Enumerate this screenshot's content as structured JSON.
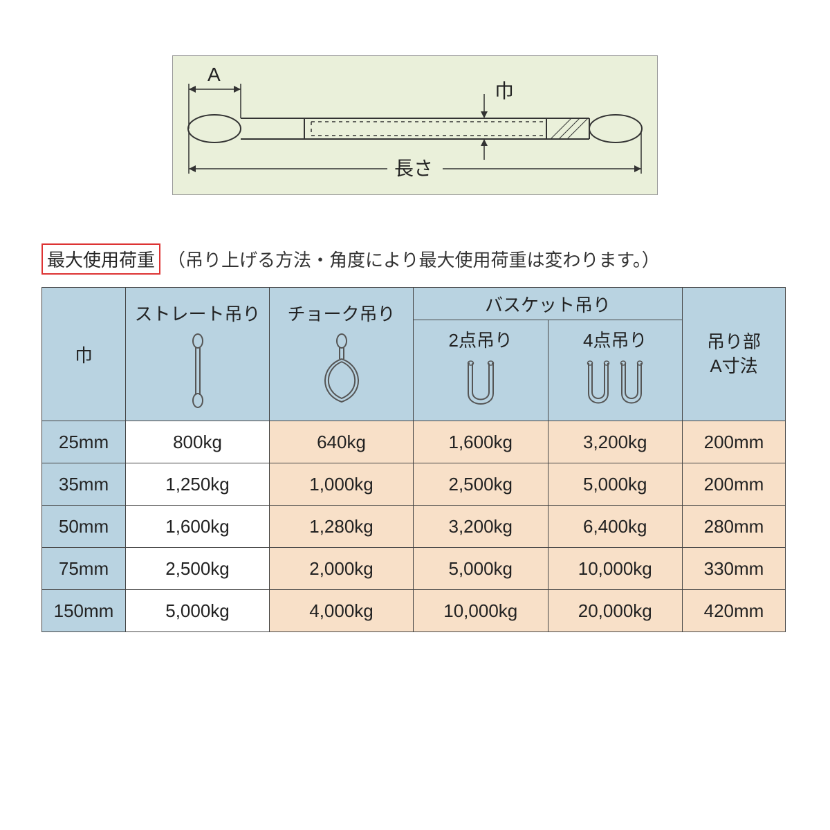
{
  "diagram": {
    "background": "#eaf0da",
    "label_A": "A",
    "label_width": "巾",
    "label_length": "長さ"
  },
  "caption": {
    "title": "最大使用荷重",
    "note": "（吊り上げる方法・角度により最大使用荷重は変わります。）"
  },
  "table": {
    "header_bg": "#b9d3e1",
    "peach_bg": "#f8e0c8",
    "width_label": "巾",
    "straight_label": "ストレート吊り",
    "choke_label": "チョーク吊り",
    "basket_label": "バスケット吊り",
    "two_pt_label": "2点吊り",
    "four_pt_label": "4点吊り",
    "a_dim_label1": "吊り部",
    "a_dim_label2": "A寸法",
    "columns": [
      "width",
      "straight",
      "choke",
      "two_pt",
      "four_pt",
      "a_dim"
    ],
    "rows": [
      {
        "width": "25mm",
        "straight": "800kg",
        "choke": "640kg",
        "two_pt": "1,600kg",
        "four_pt": "3,200kg",
        "a_dim": "200mm"
      },
      {
        "width": "35mm",
        "straight": "1,250kg",
        "choke": "1,000kg",
        "two_pt": "2,500kg",
        "four_pt": "5,000kg",
        "a_dim": "200mm"
      },
      {
        "width": "50mm",
        "straight": "1,600kg",
        "choke": "1,280kg",
        "two_pt": "3,200kg",
        "four_pt": "6,400kg",
        "a_dim": "280mm"
      },
      {
        "width": "75mm",
        "straight": "2,500kg",
        "choke": "2,000kg",
        "two_pt": "5,000kg",
        "four_pt": "10,000kg",
        "a_dim": "330mm"
      },
      {
        "width": "150mm",
        "straight": "5,000kg",
        "choke": "4,000kg",
        "two_pt": "10,000kg",
        "four_pt": "20,000kg",
        "a_dim": "420mm"
      }
    ]
  }
}
